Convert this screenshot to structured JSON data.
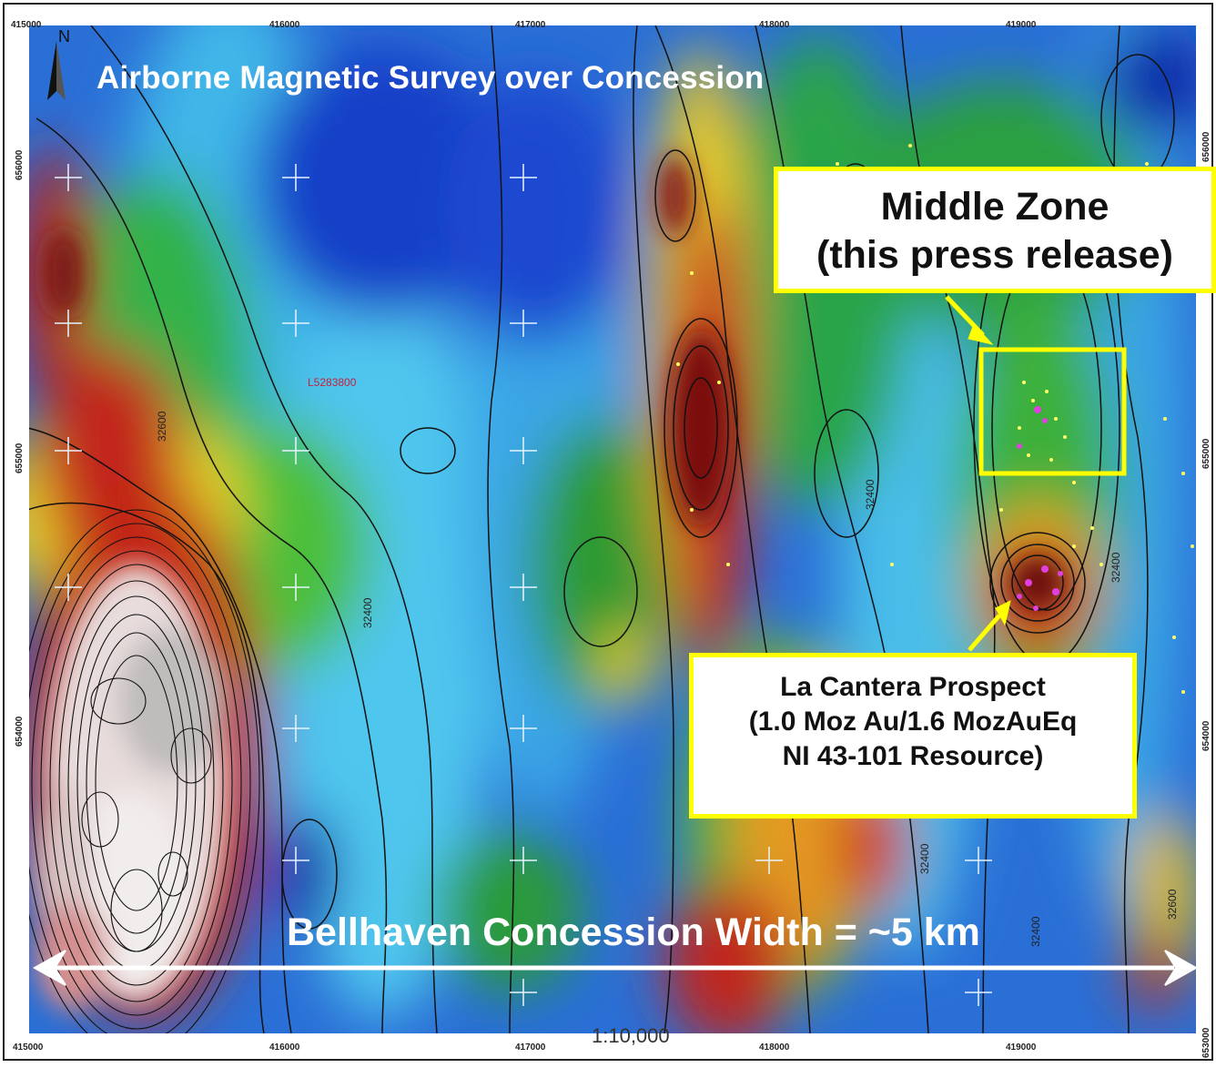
{
  "map": {
    "title": "Airborne Magnetic Survey over Concession",
    "north_label": "N",
    "scale": "1:10,000",
    "anomaly_label": "L5283800",
    "contour_labels": [
      "32600",
      "32400",
      "32400",
      "32400",
      "32400",
      "32400",
      "32600"
    ],
    "width_label": "Bellhaven Concession Width = ~5 km",
    "x_ticks": [
      "415000",
      "416000",
      "417000",
      "418000",
      "419000"
    ],
    "y_ticks": [
      "656000",
      "655000",
      "654000",
      "653000"
    ],
    "middle_zone": {
      "line1": "Middle Zone",
      "line2": "(this press release)"
    },
    "la_cantera": {
      "line1": "La Cantera Prospect",
      "line2": "(1.0 Moz Au/1.6 MozAuEq",
      "line3": "NI 43-101 Resource)"
    },
    "colors": {
      "callout_border": "#ffff00",
      "arrow": "#ffff00",
      "width_arrow": "#ffffff"
    }
  }
}
